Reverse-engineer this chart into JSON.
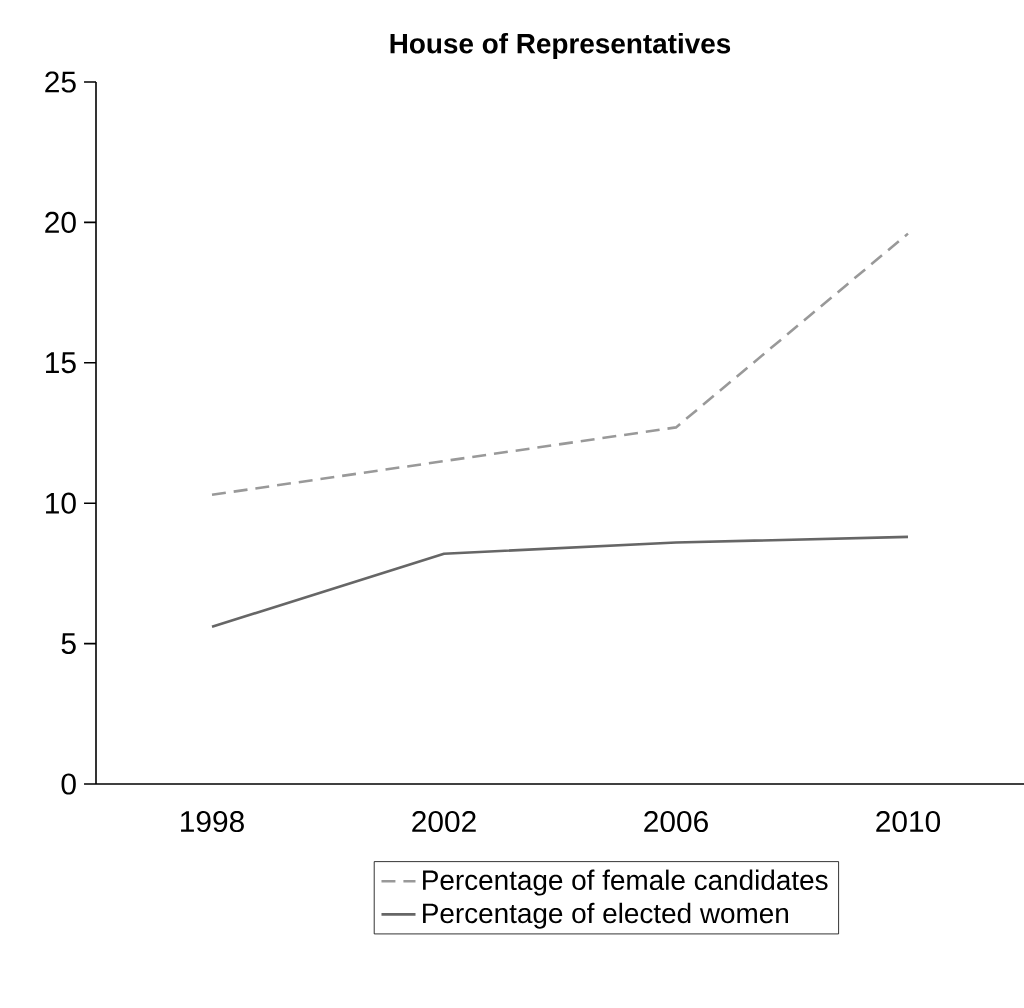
{
  "chart_data": {
    "type": "line",
    "title": "House of Representatives",
    "categories": [
      "1998",
      "2002",
      "2006",
      "2010"
    ],
    "series": [
      {
        "name": "Percentage of female candidates",
        "color": "#999999",
        "line_style": "dashed",
        "values": [
          10.3,
          11.5,
          12.7,
          19.6
        ]
      },
      {
        "name": "Percentage of elected women",
        "color": "#666666",
        "line_style": "solid",
        "values": [
          5.6,
          8.2,
          8.6,
          8.8
        ]
      }
    ],
    "ylim": [
      0,
      25
    ],
    "yticks": [
      0,
      5,
      10,
      15,
      20,
      25
    ],
    "legend": "bottom",
    "marker": "none"
  }
}
